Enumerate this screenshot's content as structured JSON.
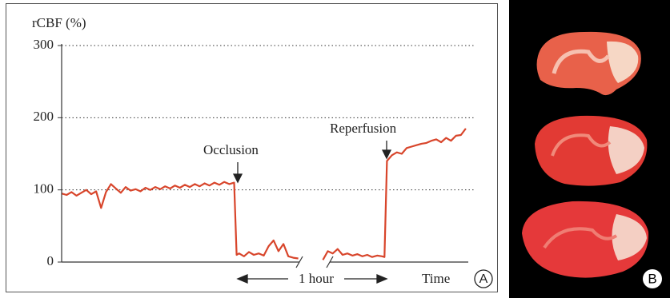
{
  "chart_data": {
    "type": "line",
    "ylabel": "rCBF (%)",
    "xlabel": "Time",
    "annotations": [
      "Occlusion",
      "Reperfusion",
      "1 hour"
    ],
    "panel_label": "A",
    "color": "#d8452b",
    "grid": true,
    "ylim": [
      0,
      300
    ],
    "yticks": [
      0,
      100,
      200,
      300
    ],
    "xlim": [
      0,
      165
    ],
    "x": [
      0,
      2,
      4,
      6,
      8,
      10,
      12,
      14,
      16,
      18,
      20,
      22,
      24,
      26,
      28,
      30,
      32,
      34,
      36,
      38,
      40,
      42,
      44,
      46,
      48,
      50,
      52,
      54,
      56,
      58,
      60,
      62,
      64,
      66,
      68,
      70,
      71,
      72,
      74,
      76,
      78,
      80,
      82,
      84,
      86,
      88,
      90,
      92,
      94,
      96,
      100,
      106,
      108,
      110,
      112,
      114,
      116,
      118,
      120,
      122,
      124,
      126,
      128,
      130,
      131,
      132,
      134,
      136,
      138,
      140,
      142,
      144,
      146,
      148,
      150,
      152,
      154,
      156,
      158,
      160,
      162,
      164
    ],
    "values": [
      95,
      93,
      97,
      92,
      96,
      100,
      94,
      98,
      75,
      97,
      108,
      102,
      96,
      104,
      99,
      101,
      98,
      103,
      100,
      104,
      101,
      105,
      102,
      106,
      103,
      107,
      104,
      108,
      105,
      109,
      106,
      110,
      107,
      111,
      108,
      110,
      10,
      12,
      8,
      14,
      10,
      12,
      9,
      22,
      30,
      15,
      25,
      8,
      6,
      5,
      null,
      3,
      15,
      12,
      18,
      10,
      12,
      9,
      11,
      8,
      10,
      7,
      9,
      8,
      7,
      140,
      148,
      152,
      150,
      158,
      160,
      162,
      164,
      165,
      168,
      170,
      166,
      172,
      168,
      175,
      176,
      185
    ]
  },
  "image_panel": {
    "label": "B"
  }
}
